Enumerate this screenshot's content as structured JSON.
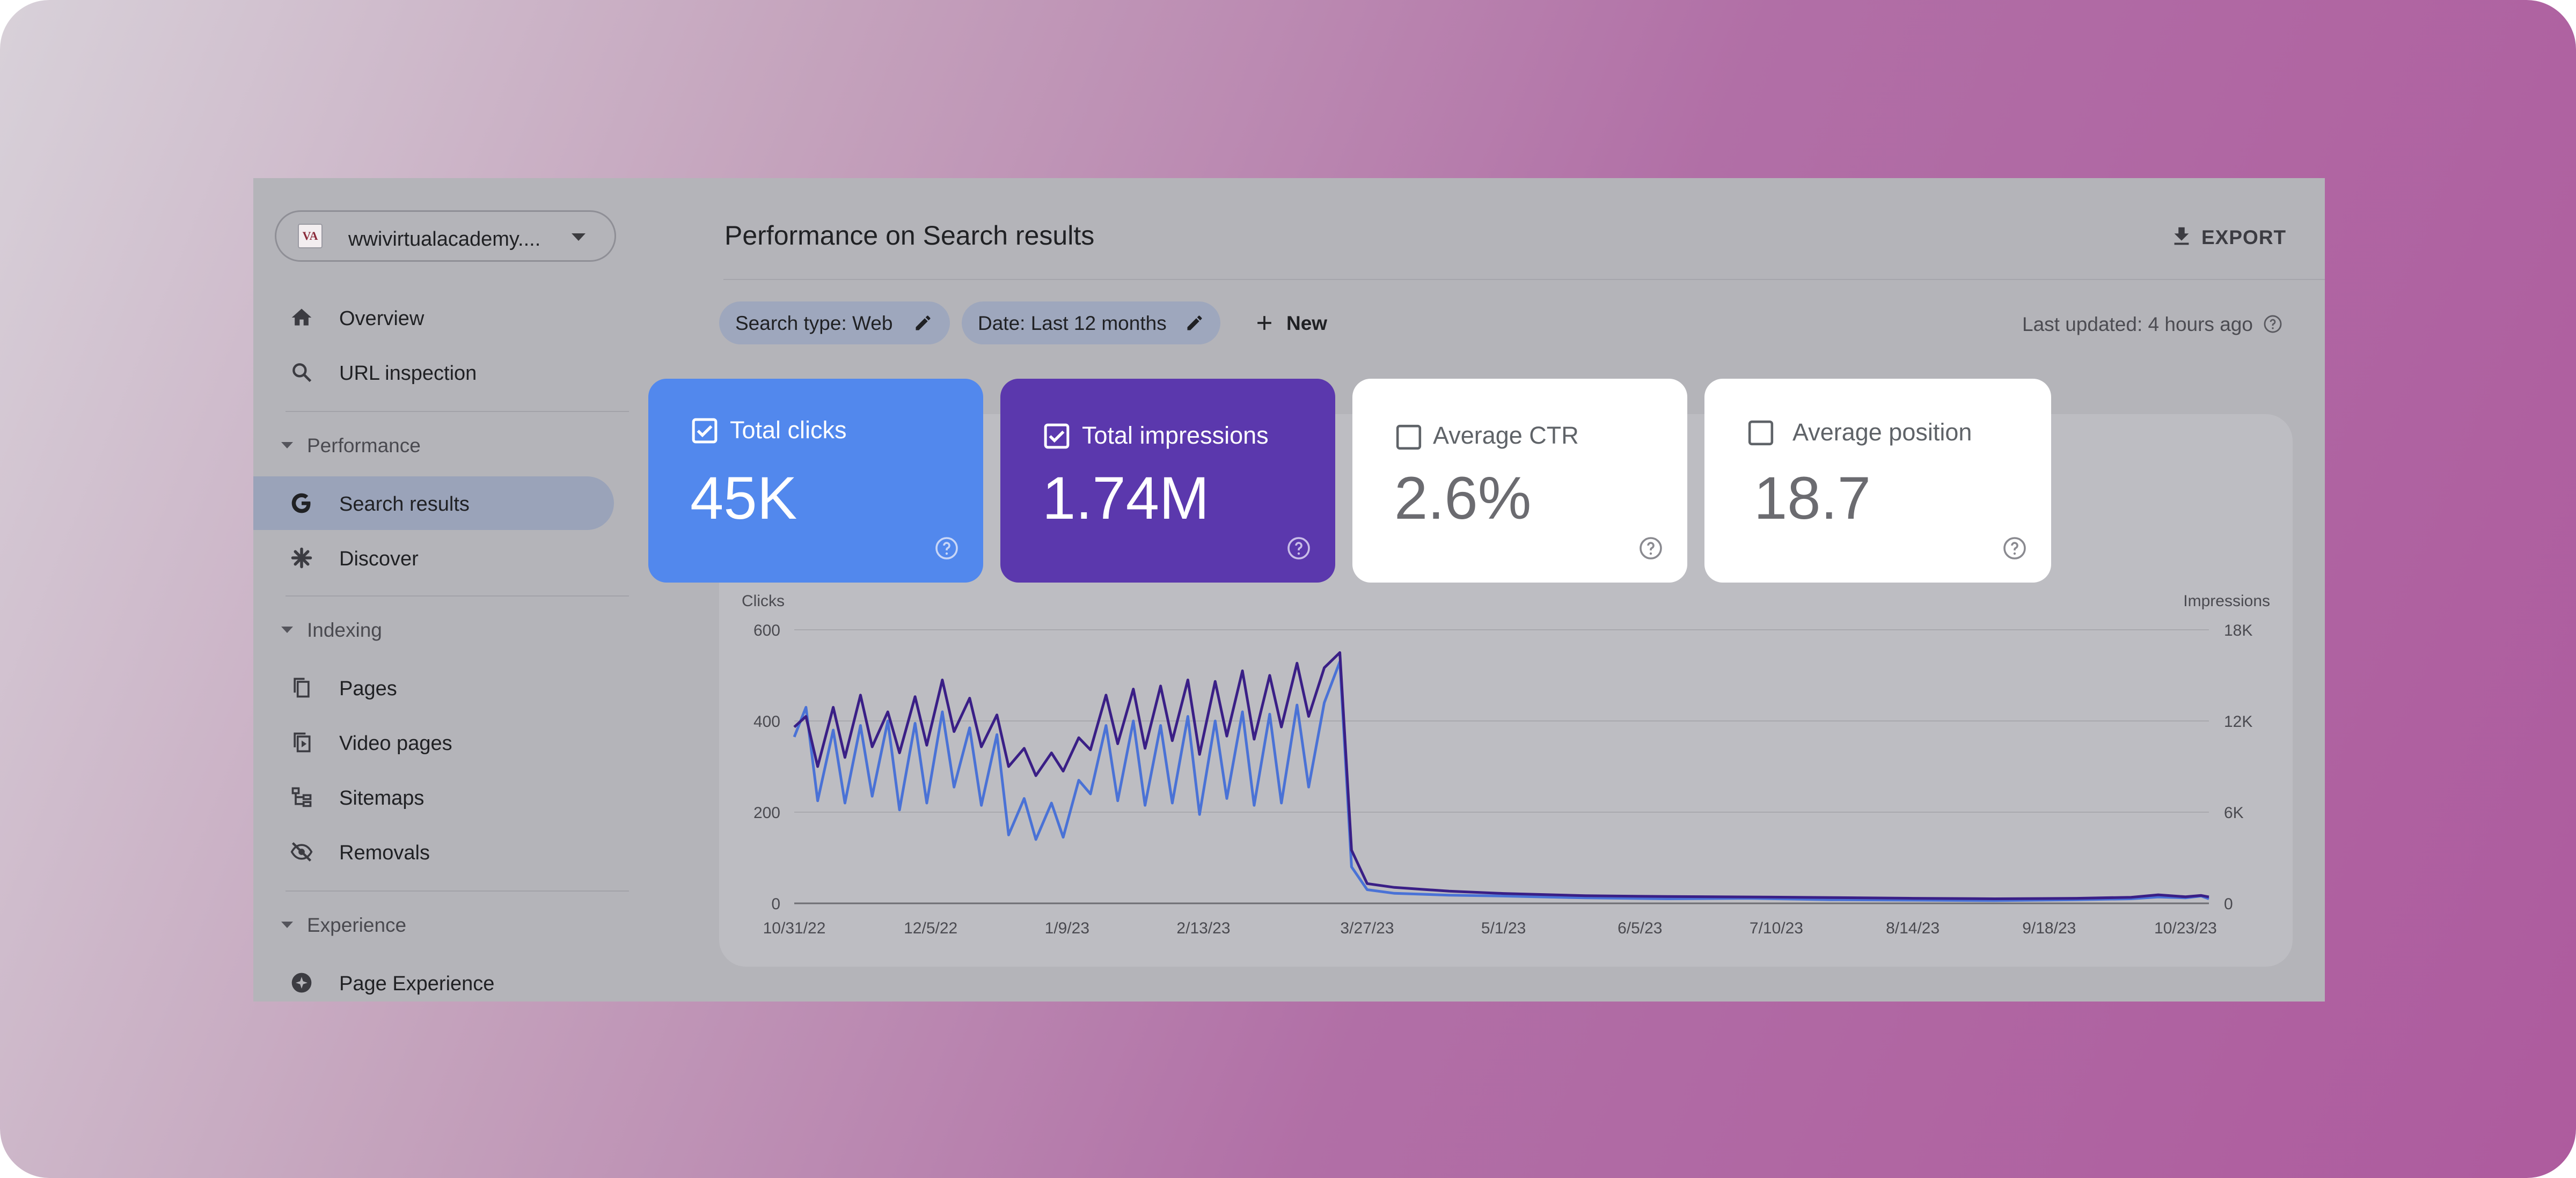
{
  "property": {
    "logo_text": "VA",
    "name": "wwivirtualacademy...."
  },
  "nav": {
    "overview": "Overview",
    "url_inspection": "URL inspection",
    "performance_section": "Performance",
    "search_results": "Search results",
    "discover": "Discover",
    "indexing_section": "Indexing",
    "pages": "Pages",
    "video_pages": "Video pages",
    "sitemaps": "Sitemaps",
    "removals": "Removals",
    "experience_section": "Experience",
    "page_experience": "Page Experience"
  },
  "header": {
    "title": "Performance on Search results",
    "export_label": "EXPORT"
  },
  "filters": {
    "search_type": "Search type: Web",
    "date": "Date: Last 12 months",
    "new_label": "New",
    "last_updated": "Last updated: 4 hours ago"
  },
  "metrics": [
    {
      "title": "Total clicks",
      "value": "45K",
      "checked": true,
      "color": "#4f87ee"
    },
    {
      "title": "Total impressions",
      "value": "1.74M",
      "checked": true,
      "color": "#5a3aaf"
    },
    {
      "title": "Average CTR",
      "value": "2.6%",
      "checked": false,
      "color": "#ffffff"
    },
    {
      "title": "Average position",
      "value": "18.7",
      "checked": false,
      "color": "#ffffff"
    }
  ],
  "chart_data": {
    "type": "line",
    "x_ticks": [
      "10/31/22",
      "12/5/22",
      "1/9/23",
      "2/13/23",
      "3/27/23",
      "5/1/23",
      "6/5/23",
      "7/10/23",
      "8/14/23",
      "9/18/23",
      "10/23/23"
    ],
    "y_left_label": "Clicks",
    "y_left_ticks": [
      "0",
      "200",
      "400",
      "600"
    ],
    "y_left_range": [
      0,
      600
    ],
    "y_right_label": "Impressions",
    "y_right_ticks": [
      "0",
      "6K",
      "12K",
      "18K"
    ],
    "y_right_range": [
      0,
      18000
    ],
    "grid": true,
    "x_range": [
      "2022-10-31",
      "2023-10-29"
    ],
    "series": [
      {
        "name": "Total clicks",
        "axis": "left",
        "color": "#4a72d6",
        "points": [
          [
            "2022-10-31",
            365
          ],
          [
            "2022-11-03",
            430
          ],
          [
            "2022-11-06",
            225
          ],
          [
            "2022-11-10",
            380
          ],
          [
            "2022-11-13",
            220
          ],
          [
            "2022-11-17",
            390
          ],
          [
            "2022-11-20",
            235
          ],
          [
            "2022-11-24",
            400
          ],
          [
            "2022-11-27",
            205
          ],
          [
            "2022-12-01",
            395
          ],
          [
            "2022-12-04",
            220
          ],
          [
            "2022-12-08",
            420
          ],
          [
            "2022-12-11",
            255
          ],
          [
            "2022-12-15",
            385
          ],
          [
            "2022-12-18",
            215
          ],
          [
            "2022-12-22",
            370
          ],
          [
            "2022-12-25",
            150
          ],
          [
            "2022-12-29",
            230
          ],
          [
            "2023-01-01",
            140
          ],
          [
            "2023-01-05",
            220
          ],
          [
            "2023-01-08",
            145
          ],
          [
            "2023-01-12",
            270
          ],
          [
            "2023-01-15",
            240
          ],
          [
            "2023-01-19",
            390
          ],
          [
            "2023-01-22",
            225
          ],
          [
            "2023-01-26",
            400
          ],
          [
            "2023-01-29",
            215
          ],
          [
            "2023-02-02",
            390
          ],
          [
            "2023-02-05",
            220
          ],
          [
            "2023-02-09",
            410
          ],
          [
            "2023-02-12",
            195
          ],
          [
            "2023-02-16",
            400
          ],
          [
            "2023-02-19",
            230
          ],
          [
            "2023-02-23",
            420
          ],
          [
            "2023-02-26",
            215
          ],
          [
            "2023-03-02",
            415
          ],
          [
            "2023-03-05",
            220
          ],
          [
            "2023-03-09",
            435
          ],
          [
            "2023-03-12",
            255
          ],
          [
            "2023-03-16",
            440
          ],
          [
            "2023-03-20",
            530
          ],
          [
            "2023-03-23",
            80
          ],
          [
            "2023-03-27",
            30
          ],
          [
            "2023-04-03",
            22
          ],
          [
            "2023-04-17",
            18
          ],
          [
            "2023-05-01",
            16
          ],
          [
            "2023-05-22",
            12
          ],
          [
            "2023-06-12",
            10
          ],
          [
            "2023-07-03",
            11
          ],
          [
            "2023-07-24",
            8
          ],
          [
            "2023-08-14",
            7
          ],
          [
            "2023-09-04",
            6
          ],
          [
            "2023-09-25",
            8
          ],
          [
            "2023-10-09",
            10
          ],
          [
            "2023-10-16",
            14
          ],
          [
            "2023-10-23",
            12
          ],
          [
            "2023-10-27",
            16
          ],
          [
            "2023-10-29",
            10
          ]
        ]
      },
      {
        "name": "Total impressions",
        "axis": "right",
        "color": "#3a1f86",
        "points": [
          [
            "2022-10-31",
            11600
          ],
          [
            "2022-11-03",
            12300
          ],
          [
            "2022-11-06",
            9000
          ],
          [
            "2022-11-10",
            12900
          ],
          [
            "2022-11-13",
            9600
          ],
          [
            "2022-11-17",
            13700
          ],
          [
            "2022-11-20",
            10300
          ],
          [
            "2022-11-24",
            12600
          ],
          [
            "2022-11-27",
            9900
          ],
          [
            "2022-12-01",
            13600
          ],
          [
            "2022-12-04",
            10400
          ],
          [
            "2022-12-08",
            14700
          ],
          [
            "2022-12-11",
            11300
          ],
          [
            "2022-12-15",
            13500
          ],
          [
            "2022-12-18",
            10300
          ],
          [
            "2022-12-22",
            12400
          ],
          [
            "2022-12-25",
            9000
          ],
          [
            "2022-12-29",
            10200
          ],
          [
            "2023-01-01",
            8400
          ],
          [
            "2023-01-05",
            9900
          ],
          [
            "2023-01-08",
            8700
          ],
          [
            "2023-01-12",
            10900
          ],
          [
            "2023-01-15",
            10100
          ],
          [
            "2023-01-19",
            13700
          ],
          [
            "2023-01-22",
            10500
          ],
          [
            "2023-01-26",
            14100
          ],
          [
            "2023-01-29",
            10200
          ],
          [
            "2023-02-02",
            14300
          ],
          [
            "2023-02-05",
            10700
          ],
          [
            "2023-02-09",
            14700
          ],
          [
            "2023-02-12",
            9800
          ],
          [
            "2023-02-16",
            14600
          ],
          [
            "2023-02-19",
            11000
          ],
          [
            "2023-02-23",
            15300
          ],
          [
            "2023-02-26",
            10800
          ],
          [
            "2023-03-02",
            15000
          ],
          [
            "2023-03-05",
            11600
          ],
          [
            "2023-03-09",
            15800
          ],
          [
            "2023-03-12",
            12300
          ],
          [
            "2023-03-16",
            15500
          ],
          [
            "2023-03-20",
            16500
          ],
          [
            "2023-03-23",
            3500
          ],
          [
            "2023-03-27",
            1300
          ],
          [
            "2023-04-03",
            1050
          ],
          [
            "2023-04-17",
            800
          ],
          [
            "2023-05-01",
            650
          ],
          [
            "2023-05-22",
            500
          ],
          [
            "2023-06-12",
            450
          ],
          [
            "2023-07-03",
            420
          ],
          [
            "2023-07-24",
            380
          ],
          [
            "2023-08-14",
            330
          ],
          [
            "2023-09-04",
            300
          ],
          [
            "2023-09-25",
            330
          ],
          [
            "2023-10-09",
            400
          ],
          [
            "2023-10-16",
            560
          ],
          [
            "2023-10-23",
            430
          ],
          [
            "2023-10-27",
            520
          ],
          [
            "2023-10-29",
            420
          ]
        ]
      }
    ]
  }
}
